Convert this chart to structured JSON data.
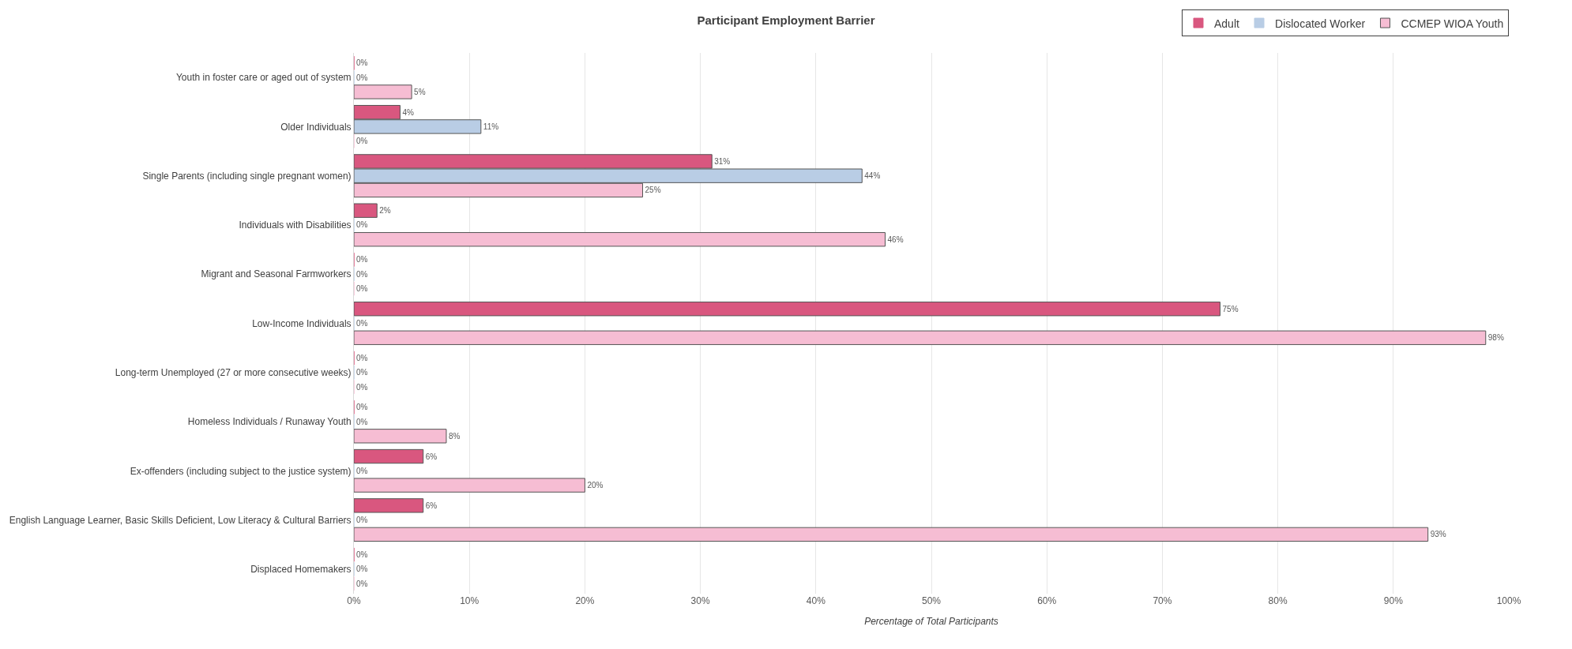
{
  "chart_data": {
    "type": "bar",
    "orientation": "horizontal",
    "title": "Participant Employment Barrier",
    "xlabel": "Percentage of Total Participants",
    "categories": [
      "Youth in foster care or aged out of system",
      "Older Individuals",
      "Single Parents (including single pregnant women)",
      "Individuals with Disabilities",
      "Migrant and Seasonal Farmworkers",
      "Low-Income Individuals",
      "Long-term Unemployed (27 or more consecutive weeks)",
      "Homeless Individuals / Runaway Youth",
      "Ex-offenders (including subject to the justice system)",
      "English Language Learner, Basic Skills Deficient, Low Literacy & Cultural Barriers",
      "Displaced Homemakers"
    ],
    "series": [
      {
        "name": "Adult",
        "color": "#d9577f",
        "values": [
          0,
          4,
          31,
          2,
          0,
          75,
          0,
          0,
          6,
          6,
          0
        ],
        "value_labels": [
          "0%",
          "4%",
          "31%",
          "2%",
          "0%",
          "75%",
          "0%",
          "0%",
          "6%",
          "6%",
          "0%"
        ]
      },
      {
        "name": "Dislocated Worker",
        "color": "#b9cde5",
        "values": [
          0,
          11,
          44,
          0,
          0,
          0,
          0,
          0,
          0,
          0,
          0
        ],
        "value_labels": [
          "0%",
          "11%",
          "44%",
          "0%",
          "0%",
          "0%",
          "0%",
          "0%",
          "0%",
          "0%",
          "0%"
        ]
      },
      {
        "name": "CCMEP WIOA Youth",
        "color": "#f6bdd3",
        "values": [
          5,
          0,
          25,
          46,
          0,
          98,
          0,
          8,
          20,
          93,
          0
        ],
        "value_labels": [
          "5%",
          "0%",
          "25%",
          "46%",
          "0%",
          "98%",
          "0%",
          "8%",
          "20%",
          "93%",
          "0%"
        ]
      }
    ],
    "xlim": [
      0,
      100
    ],
    "xticks": [
      {
        "value": 0,
        "label": "0%"
      },
      {
        "value": 10,
        "label": "10%"
      },
      {
        "value": 20,
        "label": "20%"
      },
      {
        "value": 30,
        "label": "30%"
      },
      {
        "value": 40,
        "label": "40%"
      },
      {
        "value": 50,
        "label": "50%"
      },
      {
        "value": 60,
        "label": "60%"
      },
      {
        "value": 70,
        "label": "70%"
      },
      {
        "value": 80,
        "label": "80%"
      },
      {
        "value": 90,
        "label": "90%"
      },
      {
        "value": 100,
        "label": "100%"
      }
    ],
    "grid": "x",
    "legend": "top right"
  }
}
